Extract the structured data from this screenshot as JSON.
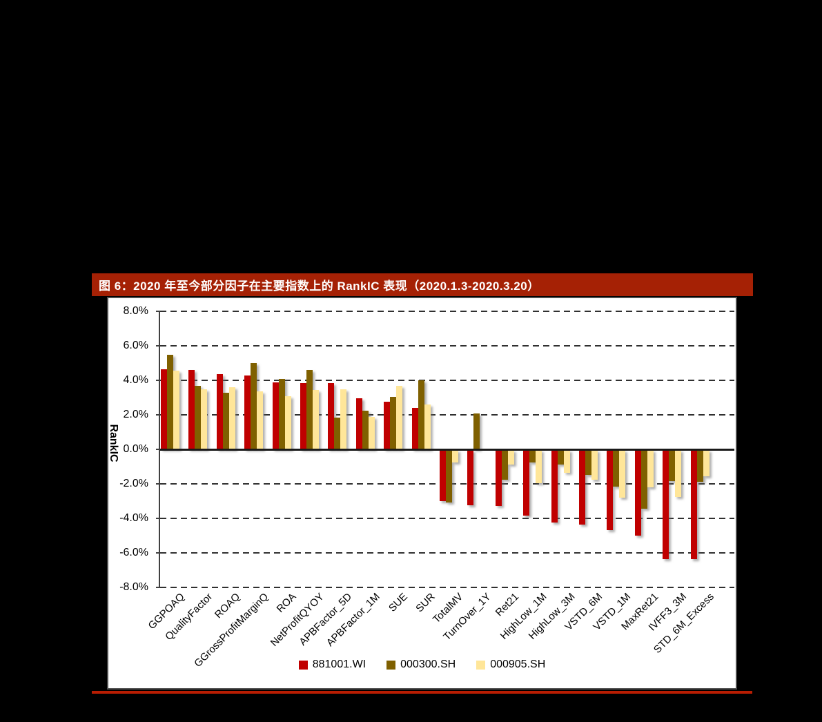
{
  "figure": {
    "title": "图 6：2020 年至今部分因子在主要指数上的 RankIC 表现（2020.1.3-2020.3.20）",
    "title_bar_color": "#A52105",
    "underline_color": "#B81D02"
  },
  "chart_data": {
    "type": "bar",
    "title": "2020 年至今部分因子在主要指数上的 RankIC 表现（2020.1.3-2020.3.20）",
    "xlabel": "",
    "ylabel": "RankIC",
    "ylim": [
      -8,
      8
    ],
    "ytick_values": [
      8,
      6,
      4,
      2,
      0,
      -2,
      -4,
      -6,
      -8
    ],
    "ytick_labels": [
      "8.0%",
      "6.0%",
      "4.0%",
      "2.0%",
      "0.0%",
      "-2.0%",
      "-4.0%",
      "-6.0%",
      "-8.0%"
    ],
    "grid": "horizontal-dashed",
    "legend_position": "bottom",
    "categories": [
      "GGPOAQ",
      "QualityFactor",
      "ROAQ",
      "GGrossProfitMarginQ",
      "ROA",
      "NetProfitQYOY",
      "APBFactor_5D",
      "APBFactor_1M",
      "SUE",
      "SUR",
      "TotalMV",
      "TurnOver_1Y",
      "Ret21",
      "HighLow_1M",
      "HighLow_3M",
      "VSTD_6M",
      "VSTD_1M",
      "MaxRet21",
      "IVFF3_3M",
      "STD_6M_Excess"
    ],
    "series": [
      {
        "name": "881001.WI",
        "color": "#C00000",
        "values": [
          4.65,
          4.6,
          4.35,
          4.3,
          3.9,
          3.85,
          3.85,
          2.95,
          2.75,
          2.4,
          -2.95,
          -3.2,
          -3.25,
          -3.8,
          -4.2,
          -4.3,
          -4.65,
          -4.95,
          -6.3,
          -6.3
        ]
      },
      {
        "name": "000300.SH",
        "color": "#7F6000",
        "values": [
          5.5,
          3.7,
          3.3,
          5.0,
          4.1,
          4.6,
          1.85,
          2.25,
          3.05,
          4.0,
          -3.05,
          2.1,
          -1.7,
          -0.7,
          -0.85,
          -1.45,
          -2.1,
          -3.4,
          -1.8,
          -1.85
        ]
      },
      {
        "name": "000905.SH",
        "color": "#FFE699",
        "values": [
          4.55,
          3.5,
          3.6,
          3.35,
          3.1,
          3.45,
          3.5,
          1.9,
          3.7,
          2.6,
          -0.7,
          0.0,
          -0.85,
          -1.9,
          -1.3,
          -1.7,
          -2.75,
          -2.15,
          -2.7,
          -1.5
        ]
      }
    ]
  }
}
